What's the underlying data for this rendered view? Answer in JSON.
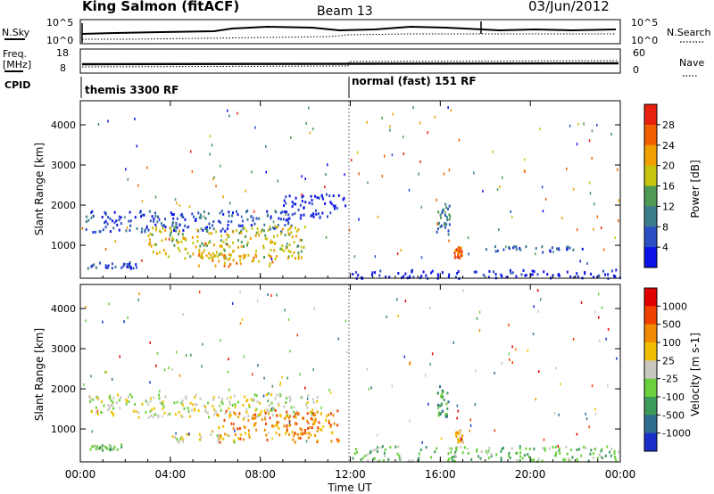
{
  "header": {
    "station": "King Salmon (fitACF)",
    "beam": "Beam 13",
    "date": "03/Jun/2012"
  },
  "top_panels": {
    "nsky_label": "N.Sky",
    "nsky_ticks": [
      "10^5",
      "10^0"
    ],
    "nsearch_label": "N.Search",
    "nsearch_ticks": [
      "10^5",
      "10^0"
    ],
    "freq_label": "Freq.",
    "freq_unit": "[MHz]",
    "freq_ticks": [
      "18",
      "8"
    ],
    "nave_label": "Nave",
    "nave_ticks": [
      "60",
      "0"
    ],
    "cpid_label": "CPID",
    "cpid_segments": [
      {
        "name": "themis 3300 RF",
        "start": "00:00",
        "end": "12:00"
      },
      {
        "name": "normal (fast) 151 RF",
        "start": "12:00",
        "end": "00:00"
      }
    ]
  },
  "chart_data": [
    {
      "type": "heatmap",
      "panel": "power",
      "ylabel": "Slant Range [km]",
      "xlabel": "Time UT",
      "yticks": [
        1000,
        2000,
        3000,
        4000
      ],
      "ylim": [
        180,
        4600
      ],
      "xticks": [
        "00:00",
        "04:00",
        "08:00",
        "12:00",
        "16:00",
        "20:00",
        "00:00"
      ],
      "xlim": [
        0,
        24
      ],
      "colorbar": {
        "label": "Power [dB]",
        "ticks": [
          "4",
          "8",
          "12",
          "16",
          "20",
          "24",
          "28"
        ],
        "colors": [
          "#0b12e8",
          "#2a4fc2",
          "#3b7d8c",
          "#4f9a55",
          "#c6c40c",
          "#f0a000",
          "#f06000",
          "#e82010"
        ]
      },
      "regions": [
        {
          "t0": 0.2,
          "t1": 9.6,
          "r0": 1350,
          "r1": 1900,
          "level": 1
        },
        {
          "t0": 3.0,
          "t1": 10.0,
          "r0": 700,
          "r1": 1500,
          "level": 4
        },
        {
          "t0": 5.0,
          "t1": 9.0,
          "r0": 500,
          "r1": 800,
          "level": 5
        },
        {
          "t0": 0.3,
          "t1": 2.5,
          "r0": 450,
          "r1": 620,
          "level": 1
        },
        {
          "t0": 9.0,
          "t1": 11.8,
          "r0": 1700,
          "r1": 2300,
          "level": 0
        },
        {
          "t0": 15.8,
          "t1": 16.4,
          "r0": 1300,
          "r1": 2100,
          "level": 2
        },
        {
          "t0": 16.6,
          "t1": 17.0,
          "r0": 700,
          "r1": 1000,
          "level": 6
        },
        {
          "t0": 18.0,
          "t1": 22.6,
          "r0": 850,
          "r1": 1000,
          "level": 1
        },
        {
          "t0": 12.0,
          "t1": 24.0,
          "r0": 200,
          "r1": 420,
          "level": 0
        }
      ]
    },
    {
      "type": "heatmap",
      "panel": "velocity",
      "ylabel": "Slant Range [km]",
      "xlabel": "Time UT",
      "yticks": [
        1000,
        2000,
        3000,
        4000
      ],
      "ylim": [
        180,
        4600
      ],
      "xticks": [
        "00:00",
        "04:00",
        "08:00",
        "12:00",
        "16:00",
        "20:00",
        "00:00"
      ],
      "xlim": [
        0,
        24
      ],
      "colorbar": {
        "label": "Velocity [m s-1]",
        "ticks": [
          "1000",
          "500",
          "100",
          "25",
          "-25",
          "-100",
          "-500",
          "-1000"
        ],
        "colors": [
          "#1a2fc8",
          "#2f6e8c",
          "#3c9a5a",
          "#6ad03c",
          "#c8c8c0",
          "#f0c000",
          "#f08a00",
          "#f04000",
          "#e00000"
        ]
      },
      "regions": [
        {
          "t0": 0.2,
          "t1": 10.5,
          "r0": 1300,
          "r1": 1900,
          "level": 4
        },
        {
          "t0": 6.0,
          "t1": 11.5,
          "r0": 700,
          "r1": 1500,
          "level": 6
        },
        {
          "t0": 4.0,
          "t1": 7.0,
          "r0": 700,
          "r1": 900,
          "level": 4
        },
        {
          "t0": 0.3,
          "t1": 1.8,
          "r0": 500,
          "r1": 650,
          "level": 3
        },
        {
          "t0": 15.8,
          "t1": 16.4,
          "r0": 1300,
          "r1": 2100,
          "level": 2
        },
        {
          "t0": 16.6,
          "t1": 17.0,
          "r0": 700,
          "r1": 1000,
          "level": 5
        },
        {
          "t0": 12.0,
          "t1": 24.0,
          "r0": 220,
          "r1": 600,
          "level": 3
        }
      ]
    }
  ],
  "footer": {
    "xlabel": "Time UT"
  }
}
